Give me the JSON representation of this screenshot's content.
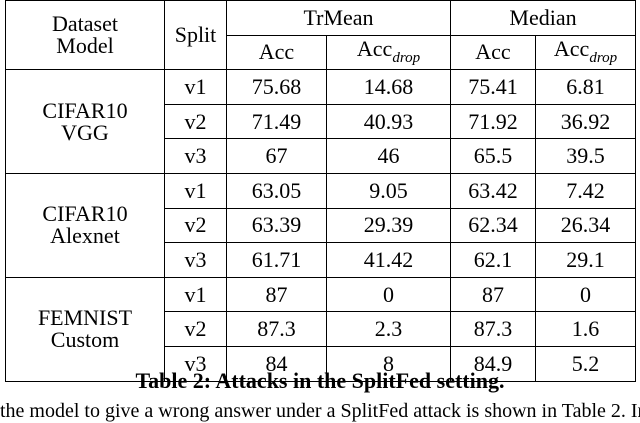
{
  "table": {
    "header": {
      "dataset_model": [
        "Dataset",
        "Model"
      ],
      "split": "Split",
      "group1": "TrMean",
      "group2": "Median",
      "acc": "Acc",
      "acc_drop_base": "Acc",
      "acc_drop_sub": "drop"
    },
    "groups": [
      {
        "name": [
          "CIFAR10",
          "VGG"
        ],
        "rows": [
          {
            "split": "v1",
            "tr_acc": "75.68",
            "tr_drop": "14.68",
            "md_acc": "75.41",
            "md_drop": "6.81"
          },
          {
            "split": "v2",
            "tr_acc": "71.49",
            "tr_drop": "40.93",
            "md_acc": "71.92",
            "md_drop": "36.92"
          },
          {
            "split": "v3",
            "tr_acc": "67",
            "tr_drop": "46",
            "md_acc": "65.5",
            "md_drop": "39.5"
          }
        ]
      },
      {
        "name": [
          "CIFAR10",
          "Alexnet"
        ],
        "rows": [
          {
            "split": "v1",
            "tr_acc": "63.05",
            "tr_drop": "9.05",
            "md_acc": "63.42",
            "md_drop": "7.42"
          },
          {
            "split": "v2",
            "tr_acc": "63.39",
            "tr_drop": "29.39",
            "md_acc": "62.34",
            "md_drop": "26.34"
          },
          {
            "split": "v3",
            "tr_acc": "61.71",
            "tr_drop": "41.42",
            "md_acc": "62.1",
            "md_drop": "29.1"
          }
        ]
      },
      {
        "name": [
          "FEMNIST",
          "Custom"
        ],
        "rows": [
          {
            "split": "v1",
            "tr_acc": "87",
            "tr_drop": "0",
            "md_acc": "87",
            "md_drop": "0"
          },
          {
            "split": "v2",
            "tr_acc": "87.3",
            "tr_drop": "2.3",
            "md_acc": "87.3",
            "md_drop": "1.6"
          },
          {
            "split": "v3",
            "tr_acc": "84",
            "tr_drop": "8",
            "md_acc": "84.9",
            "md_drop": "5.2"
          }
        ]
      }
    ]
  },
  "caption": "Table 2: Attacks in the SplitFed setting.",
  "body_text_fragment": "the model to give a wrong answer under a SplitFed attack is shown in Table 2. In"
}
